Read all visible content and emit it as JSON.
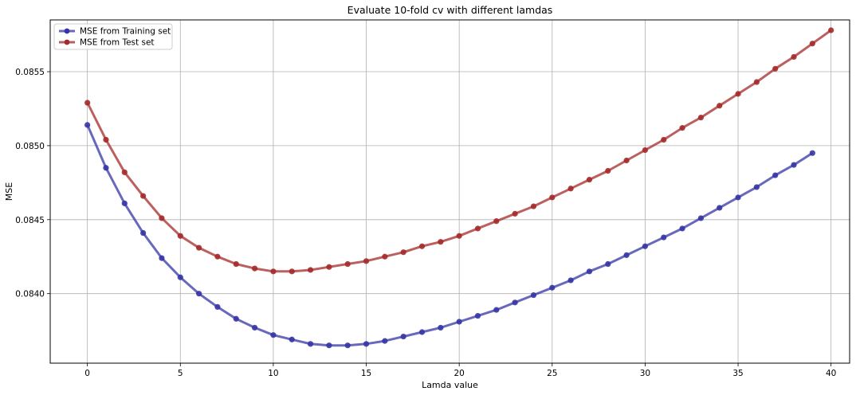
{
  "chart_data": {
    "type": "line",
    "title": "Evaluate 10-fold cv with different lamdas",
    "xlabel": "Lamda value",
    "ylabel": "MSE",
    "xlim": [
      -2,
      41
    ],
    "ylim": [
      0.08353,
      0.08585
    ],
    "xticks": [
      0,
      5,
      10,
      15,
      20,
      25,
      30,
      35,
      40
    ],
    "xtick_labels": [
      "0",
      "5",
      "10",
      "15",
      "20",
      "25",
      "30",
      "35",
      "40"
    ],
    "yticks": [
      0.084,
      0.0845,
      0.085,
      0.0855
    ],
    "ytick_labels": [
      "0.0840",
      "0.0845",
      "0.0850",
      "0.0855"
    ],
    "grid": true,
    "legend_position": "top-left",
    "series": [
      {
        "name": "MSE from Training set",
        "color": "#3535a5",
        "x": [
          0,
          1,
          2,
          3,
          4,
          5,
          6,
          7,
          8,
          9,
          10,
          11,
          12,
          13,
          14,
          15,
          16,
          17,
          18,
          19,
          20,
          21,
          22,
          23,
          24,
          25,
          26,
          27,
          28,
          29,
          30,
          31,
          32,
          33,
          34,
          35,
          36,
          37,
          38,
          39
        ],
        "values": [
          0.08514,
          0.08485,
          0.08461,
          0.08441,
          0.08424,
          0.08411,
          0.084,
          0.08391,
          0.08383,
          0.08377,
          0.08372,
          0.08369,
          0.08366,
          0.08365,
          0.08365,
          0.08366,
          0.08368,
          0.08371,
          0.08374,
          0.08377,
          0.08381,
          0.08385,
          0.08389,
          0.08394,
          0.08399,
          0.08404,
          0.08409,
          0.08415,
          0.0842,
          0.08426,
          0.08432,
          0.08438,
          0.08444,
          0.08451,
          0.08458,
          0.08465,
          0.08472,
          0.0848,
          0.08487,
          0.08495
        ]
      },
      {
        "name": "MSE from Test set",
        "color": "#a52a2a",
        "x": [
          0,
          1,
          2,
          3,
          4,
          5,
          6,
          7,
          8,
          9,
          10,
          11,
          12,
          13,
          14,
          15,
          16,
          17,
          18,
          19,
          20,
          21,
          22,
          23,
          24,
          25,
          26,
          27,
          28,
          29,
          30,
          31,
          32,
          33,
          34,
          35,
          36,
          37,
          38,
          39,
          40
        ],
        "values": [
          0.08529,
          0.08504,
          0.08482,
          0.08466,
          0.08451,
          0.08439,
          0.08431,
          0.08425,
          0.0842,
          0.08417,
          0.08415,
          0.08415,
          0.08416,
          0.08418,
          0.0842,
          0.08422,
          0.08425,
          0.08428,
          0.08432,
          0.08435,
          0.08439,
          0.08444,
          0.08449,
          0.08454,
          0.08459,
          0.08465,
          0.08471,
          0.08477,
          0.08483,
          0.0849,
          0.08497,
          0.08504,
          0.08512,
          0.08519,
          0.08527,
          0.08535,
          0.08543,
          0.08552,
          0.0856,
          0.08569,
          0.08578
        ]
      }
    ]
  }
}
